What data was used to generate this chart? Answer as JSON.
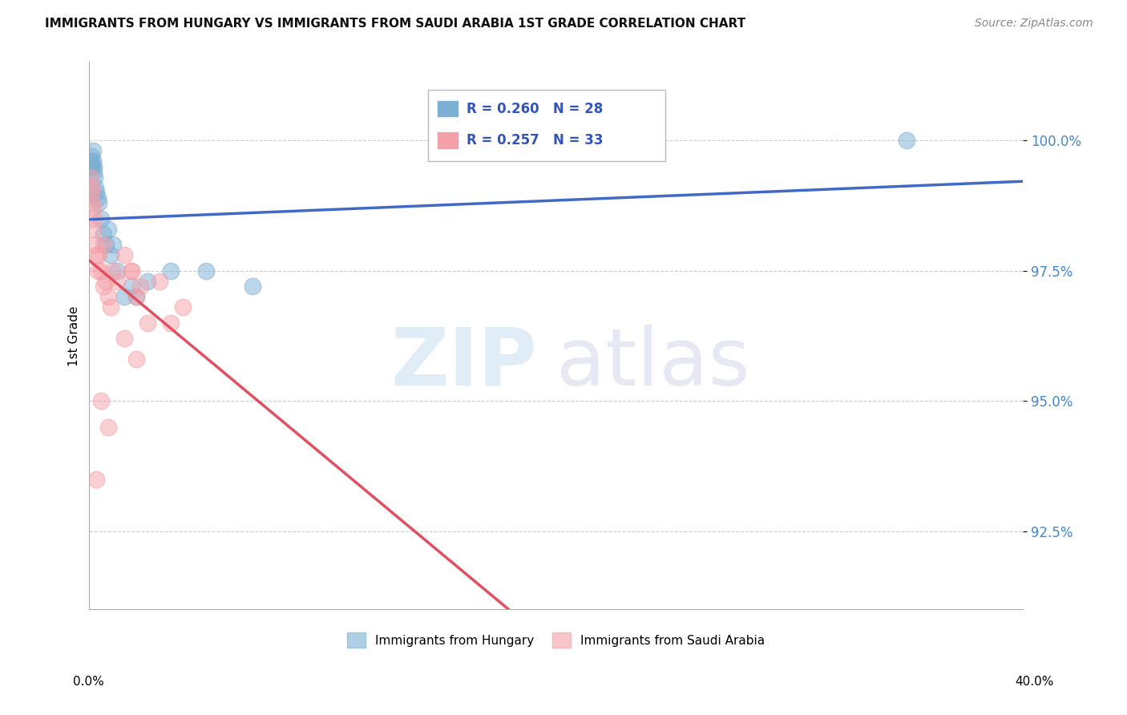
{
  "title": "IMMIGRANTS FROM HUNGARY VS IMMIGRANTS FROM SAUDI ARABIA 1ST GRADE CORRELATION CHART",
  "source_text": "Source: ZipAtlas.com",
  "ylabel": "1st Grade",
  "legend_hungary": "Immigrants from Hungary",
  "legend_saudi": "Immigrants from Saudi Arabia",
  "R_hungary": 0.26,
  "N_hungary": 28,
  "R_saudi": 0.257,
  "N_saudi": 33,
  "xlim": [
    0.0,
    40.0
  ],
  "ylim": [
    91.0,
    101.5
  ],
  "yticks": [
    92.5,
    95.0,
    97.5,
    100.0
  ],
  "hungary_color": "#7BAFD4",
  "saudi_color": "#F4A0A8",
  "hungary_line_color": "#4169C8",
  "saudi_line_color": "#E05060",
  "hungary_x": [
    0.05,
    0.08,
    0.1,
    0.12,
    0.15,
    0.18,
    0.2,
    0.22,
    0.25,
    0.3,
    0.35,
    0.4,
    0.5,
    0.6,
    0.7,
    0.8,
    0.9,
    1.0,
    1.2,
    1.5,
    1.8,
    2.0,
    2.5,
    3.5,
    5.0,
    7.0,
    35.0,
    0.15
  ],
  "hungary_y": [
    99.5,
    99.6,
    99.7,
    99.5,
    99.6,
    99.4,
    99.5,
    99.3,
    99.1,
    99.0,
    98.9,
    98.8,
    98.5,
    98.2,
    98.0,
    98.3,
    97.8,
    98.0,
    97.5,
    97.0,
    97.2,
    97.0,
    97.3,
    97.5,
    97.5,
    97.2,
    100.0,
    99.8
  ],
  "saudi_x": [
    0.05,
    0.08,
    0.1,
    0.12,
    0.15,
    0.18,
    0.2,
    0.25,
    0.3,
    0.35,
    0.4,
    0.5,
    0.6,
    0.7,
    0.8,
    0.9,
    1.0,
    1.2,
    1.5,
    1.8,
    2.0,
    2.2,
    2.5,
    3.0,
    3.5,
    4.0,
    1.5,
    1.8,
    2.0,
    0.5,
    0.8,
    0.6,
    0.3
  ],
  "saudi_y": [
    99.3,
    99.1,
    99.0,
    98.8,
    98.7,
    98.5,
    98.3,
    98.0,
    97.8,
    97.5,
    97.8,
    97.5,
    98.0,
    97.3,
    97.0,
    96.8,
    97.5,
    97.3,
    97.8,
    97.5,
    97.0,
    97.2,
    96.5,
    97.3,
    96.5,
    96.8,
    96.2,
    97.5,
    95.8,
    95.0,
    94.5,
    97.2,
    93.5
  ]
}
